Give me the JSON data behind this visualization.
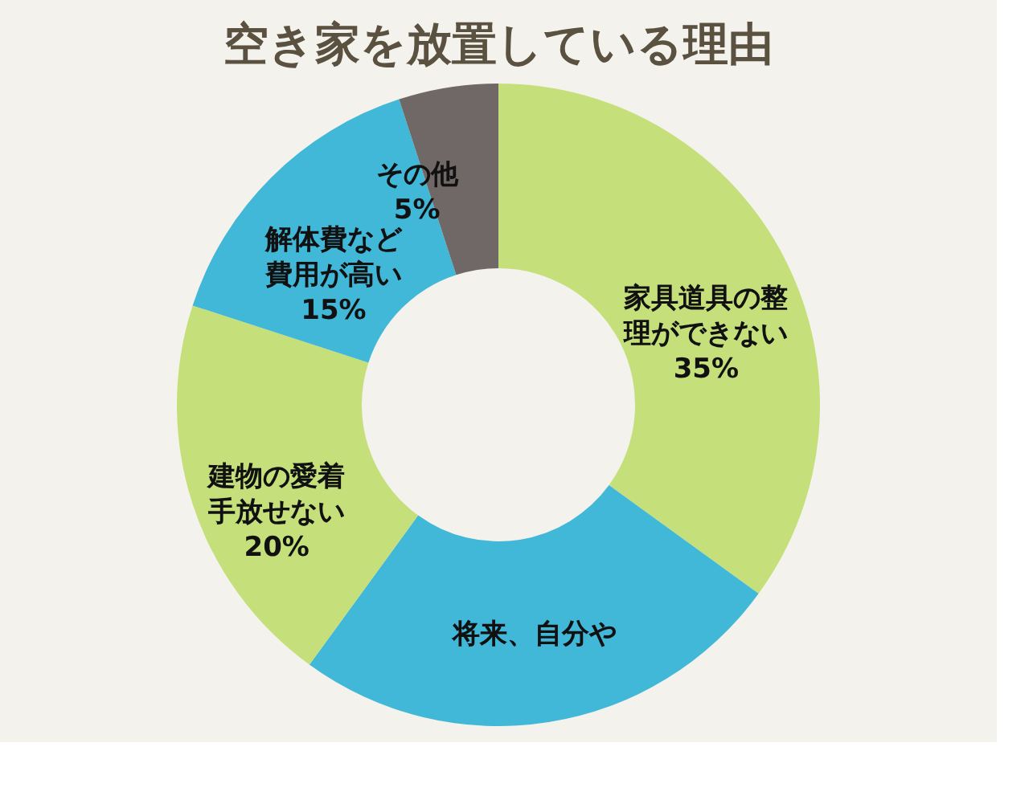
{
  "chart_data": {
    "type": "donut",
    "title": "空き家を放置している理由",
    "categories": [
      "家具道具の整理ができない",
      "将来、自分や",
      "建物の愛着手放せない",
      "解体費など費用が高い",
      "その他"
    ],
    "values": [
      35,
      25,
      20,
      15,
      5
    ],
    "colors": [
      "#c5e07a",
      "#41b8d8",
      "#c5e07a",
      "#41b8d8",
      "#6f6866"
    ],
    "value_labels": [
      "35%",
      null,
      "20%",
      "15%",
      "5%"
    ],
    "legend": false
  }
}
